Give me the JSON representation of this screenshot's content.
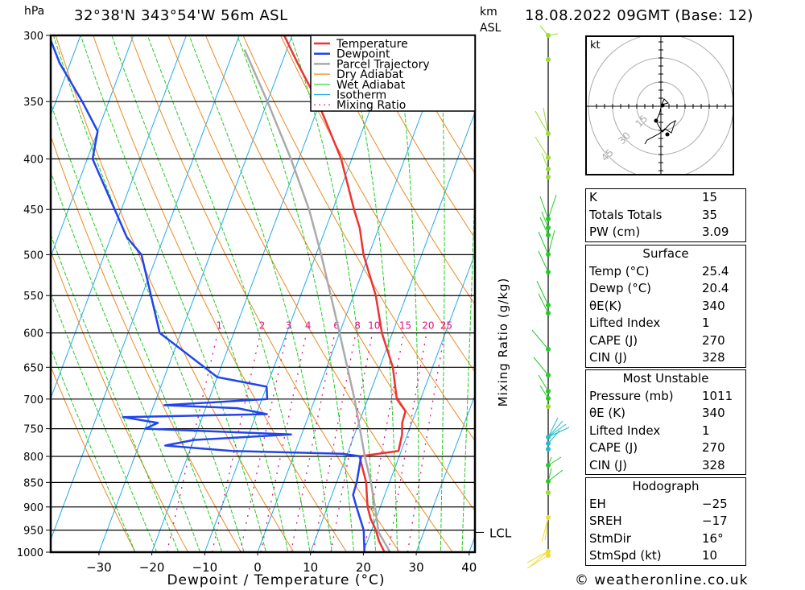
{
  "header": {
    "pressure_unit": "hPa",
    "location": "32°38'N  343°54'W  56m  ASL",
    "height_unit_line1": "km",
    "height_unit_line2": "ASL",
    "datetime": "18.08.2022  09GMT  (Base: 12)"
  },
  "chart_data": {
    "type": "line",
    "title": "Skew-T log-P sounding",
    "xlabel": "Dewpoint / Temperature (°C)",
    "ylabel": "hPa",
    "right_label": "Mixing Ratio (g/kg)",
    "x_ticks": [
      -30,
      -20,
      -10,
      0,
      10,
      20,
      30,
      40
    ],
    "x_tick_labels": [
      "−30",
      "−20",
      "−10",
      "0",
      "10",
      "20",
      "30",
      "40"
    ],
    "xlim": [
      -39,
      41
    ],
    "y_ticks": [
      300,
      350,
      400,
      450,
      500,
      550,
      600,
      650,
      700,
      750,
      800,
      850,
      900,
      950,
      1000
    ],
    "ylim": [
      1000,
      300
    ],
    "mixing_ratio_labels": [
      "1",
      "2",
      "3",
      "4",
      "6",
      "8",
      "10",
      "15",
      "20",
      "25"
    ],
    "lcl_label": "LCL",
    "lcl_pressure": 955,
    "legend": [
      {
        "name": "Temperature",
        "color": "#ee3333",
        "style": "solid"
      },
      {
        "name": "Dewpoint",
        "color": "#2244ee",
        "style": "solid"
      },
      {
        "name": "Parcel Trajectory",
        "color": "#aaaaaa",
        "style": "solid"
      },
      {
        "name": "Dry Adiabat",
        "color": "#ee8822",
        "style": "solid"
      },
      {
        "name": "Wet Adiabat",
        "color": "#22cc22",
        "style": "solid"
      },
      {
        "name": "Isotherm",
        "color": "#22aaee",
        "style": "solid"
      },
      {
        "name": "Mixing Ratio",
        "color": "#dd1188",
        "style": "dotted"
      }
    ],
    "legend_placement": "top-center",
    "series": [
      {
        "name": "Temperature",
        "points": [
          [
            1011,
            25.4
          ],
          [
            1000,
            24.0
          ],
          [
            975,
            22.2
          ],
          [
            950,
            20.8
          ],
          [
            925,
            19.0
          ],
          [
            900,
            17.6
          ],
          [
            875,
            16.6
          ],
          [
            850,
            15.6
          ],
          [
            800,
            12.5
          ],
          [
            790,
            19.5
          ],
          [
            760,
            19.0
          ],
          [
            740,
            18.2
          ],
          [
            720,
            18.0
          ],
          [
            700,
            15.5
          ],
          [
            650,
            12.5
          ],
          [
            600,
            8.0
          ],
          [
            550,
            4.2
          ],
          [
            500,
            -1.0
          ],
          [
            470,
            -3.6
          ],
          [
            450,
            -6.0
          ],
          [
            400,
            -12.0
          ],
          [
            350,
            -20.5
          ],
          [
            320,
            -27.0
          ],
          [
            300,
            -31.5
          ]
        ]
      },
      {
        "name": "Dewpoint",
        "points": [
          [
            1011,
            20.4
          ],
          [
            1000,
            20.2
          ],
          [
            950,
            18.5
          ],
          [
            900,
            15.5
          ],
          [
            875,
            14.0
          ],
          [
            850,
            13.8
          ],
          [
            800,
            12.8
          ],
          [
            795,
            9.0
          ],
          [
            790,
            -12.0
          ],
          [
            780,
            -25.0
          ],
          [
            770,
            -20.0
          ],
          [
            760,
            -2.0
          ],
          [
            750,
            -30.0
          ],
          [
            740,
            -28.0
          ],
          [
            730,
            -35.0
          ],
          [
            725,
            -8.0
          ],
          [
            715,
            -14.0
          ],
          [
            710,
            -28.0
          ],
          [
            700,
            -9.0
          ],
          [
            680,
            -10.0
          ],
          [
            665,
            -20.0
          ],
          [
            600,
            -34.0
          ],
          [
            500,
            -43.0
          ],
          [
            480,
            -47.0
          ],
          [
            400,
            -59.0
          ],
          [
            375,
            -60.0
          ],
          [
            350,
            -65.0
          ],
          [
            320,
            -72.0
          ],
          [
            300,
            -76.0
          ]
        ]
      },
      {
        "name": "Parcel Trajectory",
        "points": [
          [
            1011,
            25.4
          ],
          [
            955,
            21.5
          ],
          [
            900,
            19.0
          ],
          [
            850,
            16.5
          ],
          [
            800,
            13.5
          ],
          [
            700,
            7.5
          ],
          [
            600,
            0.0
          ],
          [
            500,
            -9.0
          ],
          [
            450,
            -14.5
          ],
          [
            400,
            -21.5
          ],
          [
            350,
            -30.0
          ],
          [
            310,
            -38.0
          ]
        ]
      }
    ]
  },
  "legend_labels": [
    "Temperature",
    "Dewpoint",
    "Parcel Trajectory",
    "Dry Adiabat",
    "Wet Adiabat",
    "Isotherm",
    "Mixing Ratio"
  ],
  "hodograph": {
    "unit_label": "kt",
    "ring_labels": [
      "15",
      "30",
      "45"
    ],
    "ring_values_kt": [
      15,
      30,
      45
    ]
  },
  "indices": {
    "rows": [
      {
        "label": "K",
        "value": "15"
      },
      {
        "label": "Totals Totals",
        "value": "35"
      },
      {
        "label": "PW (cm)",
        "value": "3.09"
      }
    ]
  },
  "surface": {
    "title": "Surface",
    "rows": [
      {
        "label": "Temp (°C)",
        "value": "25.4"
      },
      {
        "label": "Dewp (°C)",
        "value": "20.4"
      },
      {
        "label": "θE(K)",
        "value": "340"
      },
      {
        "label": "Lifted Index",
        "value": "1"
      },
      {
        "label": "CAPE (J)",
        "value": "270"
      },
      {
        "label": "CIN (J)",
        "value": "328"
      }
    ]
  },
  "most_unstable": {
    "title": "Most Unstable",
    "rows": [
      {
        "label": "Pressure (mb)",
        "value": "1011"
      },
      {
        "label": "θE (K)",
        "value": "340"
      },
      {
        "label": "Lifted Index",
        "value": "1"
      },
      {
        "label": "CAPE (J)",
        "value": "270"
      },
      {
        "label": "CIN (J)",
        "value": "328"
      }
    ]
  },
  "hodograph_stats": {
    "title": "Hodograph",
    "rows": [
      {
        "label": "EH",
        "value": "−25"
      },
      {
        "label": "SREH",
        "value": "−17"
      },
      {
        "label": "StmDir",
        "value": "16°"
      },
      {
        "label": "StmSpd (kt)",
        "value": "10"
      }
    ]
  },
  "copyright": "© weatheronline.co.uk"
}
